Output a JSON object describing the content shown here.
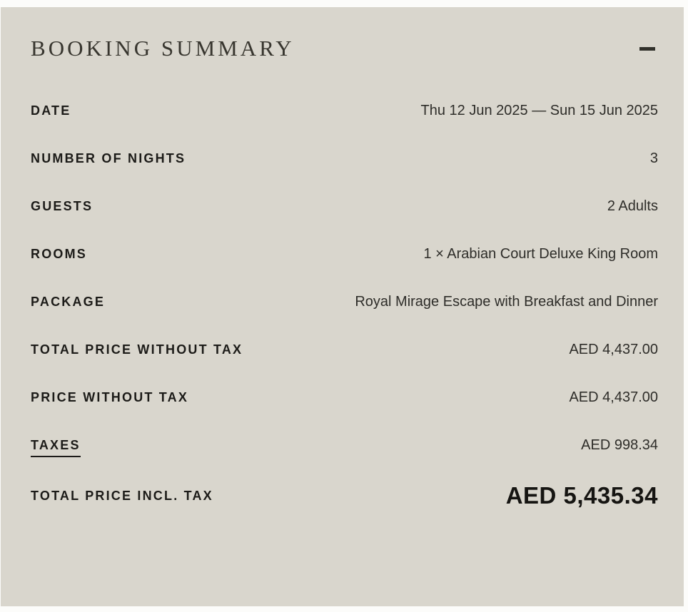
{
  "panel": {
    "title": "BOOKING SUMMARY",
    "collapse_icon": "minus",
    "colors": {
      "card_background": "#d9d6cd",
      "page_background": "#fcfcfa",
      "title_text": "#38362f",
      "label_text": "#1c1b18",
      "value_text": "#2e2d29",
      "total_text": "#161512"
    }
  },
  "rows": [
    {
      "label": "DATE",
      "value": "Thu 12 Jun 2025 — Sun 15 Jun 2025"
    },
    {
      "label": "NUMBER OF NIGHTS",
      "value": "3"
    },
    {
      "label": "GUESTS",
      "value": "2 Adults"
    },
    {
      "label": "ROOMS",
      "value": "1 × Arabian Court Deluxe King Room"
    },
    {
      "label": "PACKAGE",
      "value": "Royal Mirage Escape with Breakfast and Dinner"
    },
    {
      "label": "TOTAL PRICE WITHOUT TAX",
      "value": "AED 4,437.00"
    },
    {
      "label": "PRICE WITHOUT TAX",
      "value": "AED 4,437.00"
    },
    {
      "label": "TAXES",
      "value": "AED 998.34"
    },
    {
      "label": "TOTAL PRICE INCL. TAX",
      "value": "AED 5,435.34"
    }
  ]
}
